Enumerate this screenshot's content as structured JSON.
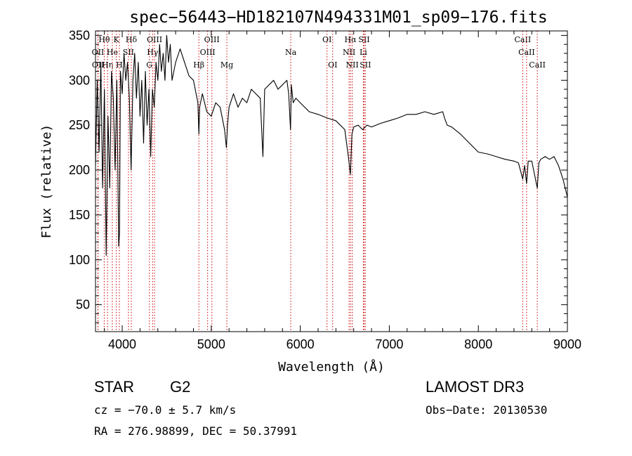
{
  "chart_data": {
    "type": "line",
    "title": "spec−56443−HD182107N494331M01_sp09−176.fits",
    "xlabel": "Wavelength (Å)",
    "ylabel": "Flux (relative)",
    "xlim": [
      3700,
      9000
    ],
    "ylim": [
      20,
      355
    ],
    "x_ticks": [
      4000,
      5000,
      6000,
      7000,
      8000,
      9000
    ],
    "y_ticks": [
      50,
      100,
      150,
      200,
      250,
      300,
      350
    ],
    "grid": false,
    "series": [
      {
        "name": "spectrum",
        "x": [
          3700,
          3720,
          3740,
          3760,
          3780,
          3800,
          3820,
          3840,
          3860,
          3880,
          3900,
          3920,
          3940,
          3960,
          3970,
          3980,
          4000,
          4020,
          4040,
          4060,
          4080,
          4100,
          4120,
          4140,
          4160,
          4180,
          4200,
          4220,
          4240,
          4260,
          4280,
          4300,
          4320,
          4340,
          4360,
          4380,
          4400,
          4420,
          4440,
          4460,
          4480,
          4500,
          4520,
          4540,
          4560,
          4600,
          4650,
          4700,
          4750,
          4800,
          4850,
          4861,
          4870,
          4900,
          4950,
          5000,
          5050,
          5100,
          5150,
          5170,
          5183,
          5200,
          5250,
          5300,
          5350,
          5400,
          5450,
          5500,
          5550,
          5580,
          5600,
          5650,
          5700,
          5750,
          5800,
          5850,
          5870,
          5890,
          5900,
          5920,
          5950,
          6000,
          6100,
          6200,
          6300,
          6400,
          6500,
          6540,
          6563,
          6580,
          6600,
          6650,
          6700,
          6750,
          6800,
          6900,
          7000,
          7100,
          7200,
          7300,
          7400,
          7500,
          7600,
          7620,
          7650,
          7700,
          7800,
          7900,
          8000,
          8100,
          8200,
          8300,
          8400,
          8450,
          8498,
          8520,
          8542,
          8560,
          8600,
          8662,
          8680,
          8700,
          8750,
          8800,
          8850,
          8900,
          8950,
          9000
        ],
        "y": [
          205,
          300,
          220,
          320,
          180,
          290,
          105,
          260,
          180,
          310,
          280,
          200,
          300,
          115,
          130,
          310,
          285,
          330,
          300,
          320,
          280,
          200,
          300,
          330,
          280,
          320,
          260,
          300,
          230,
          310,
          250,
          290,
          215,
          290,
          270,
          320,
          300,
          340,
          310,
          330,
          300,
          350,
          320,
          340,
          300,
          320,
          335,
          320,
          305,
          300,
          275,
          240,
          270,
          285,
          265,
          260,
          275,
          270,
          245,
          225,
          250,
          270,
          285,
          270,
          280,
          275,
          290,
          285,
          280,
          215,
          290,
          295,
          300,
          290,
          295,
          300,
          285,
          245,
          295,
          275,
          280,
          275,
          265,
          262,
          258,
          255,
          245,
          215,
          195,
          240,
          248,
          250,
          245,
          250,
          248,
          252,
          255,
          258,
          262,
          262,
          265,
          262,
          265,
          258,
          250,
          248,
          240,
          230,
          220,
          218,
          215,
          212,
          210,
          208,
          190,
          205,
          185,
          210,
          210,
          180,
          208,
          212,
          215,
          212,
          215,
          205,
          190,
          170
        ],
        "stroke": "#000000"
      }
    ],
    "lines": [
      {
        "name": "Hθ",
        "x": 3798,
        "row": 1
      },
      {
        "name": "OII",
        "x": 3727,
        "row": 2
      },
      {
        "name": "OII",
        "x": 3729,
        "row": 3
      },
      {
        "name": "Hη",
        "x": 3835,
        "row": 3
      },
      {
        "name": "He",
        "x": 3889,
        "row": 2
      },
      {
        "name": "K",
        "x": 3934,
        "row": 1
      },
      {
        "name": "H",
        "x": 3968,
        "row": 3
      },
      {
        "name": "SII",
        "x": 4070,
        "row": 2
      },
      {
        "name": "Hδ",
        "x": 4102,
        "row": 1
      },
      {
        "name": "G",
        "x": 4305,
        "row": 3
      },
      {
        "name": "Hγ",
        "x": 4341,
        "row": 2
      },
      {
        "name": "OIII",
        "x": 4363,
        "row": 1
      },
      {
        "name": "Hβ",
        "x": 4861,
        "row": 3
      },
      {
        "name": "OIII",
        "x": 4959,
        "row": 2
      },
      {
        "name": "OIII",
        "x": 5007,
        "row": 1
      },
      {
        "name": "Mg",
        "x": 5175,
        "row": 3
      },
      {
        "name": "Na",
        "x": 5893,
        "row": 2
      },
      {
        "name": "OI",
        "x": 6300,
        "row": 1
      },
      {
        "name": "OI",
        "x": 6364,
        "row": 3
      },
      {
        "name": "NII",
        "x": 6548,
        "row": 2
      },
      {
        "name": "NII",
        "x": 6583,
        "row": 3
      },
      {
        "name": "Hα",
        "x": 6563,
        "row": 1
      },
      {
        "name": "SII",
        "x": 6717,
        "row": 1
      },
      {
        "name": "SII",
        "x": 6731,
        "row": 3
      },
      {
        "name": "Li",
        "x": 6708,
        "row": 2
      },
      {
        "name": "CaII",
        "x": 8498,
        "row": 1
      },
      {
        "name": "CaII",
        "x": 8542,
        "row": 2
      },
      {
        "name": "CaII",
        "x": 8662,
        "row": 3
      }
    ]
  },
  "info": {
    "object_type": "STAR",
    "subclass": "G2",
    "survey": "LAMOST DR3",
    "redshift": "cz = −70.0 ± 5.7 km/s",
    "obs_date": "Obs−Date: 20130530",
    "coords": "RA = 276.98899, DEC =  50.37991"
  },
  "colors": {
    "line_marker": "#cc0000",
    "axis": "#000000"
  }
}
